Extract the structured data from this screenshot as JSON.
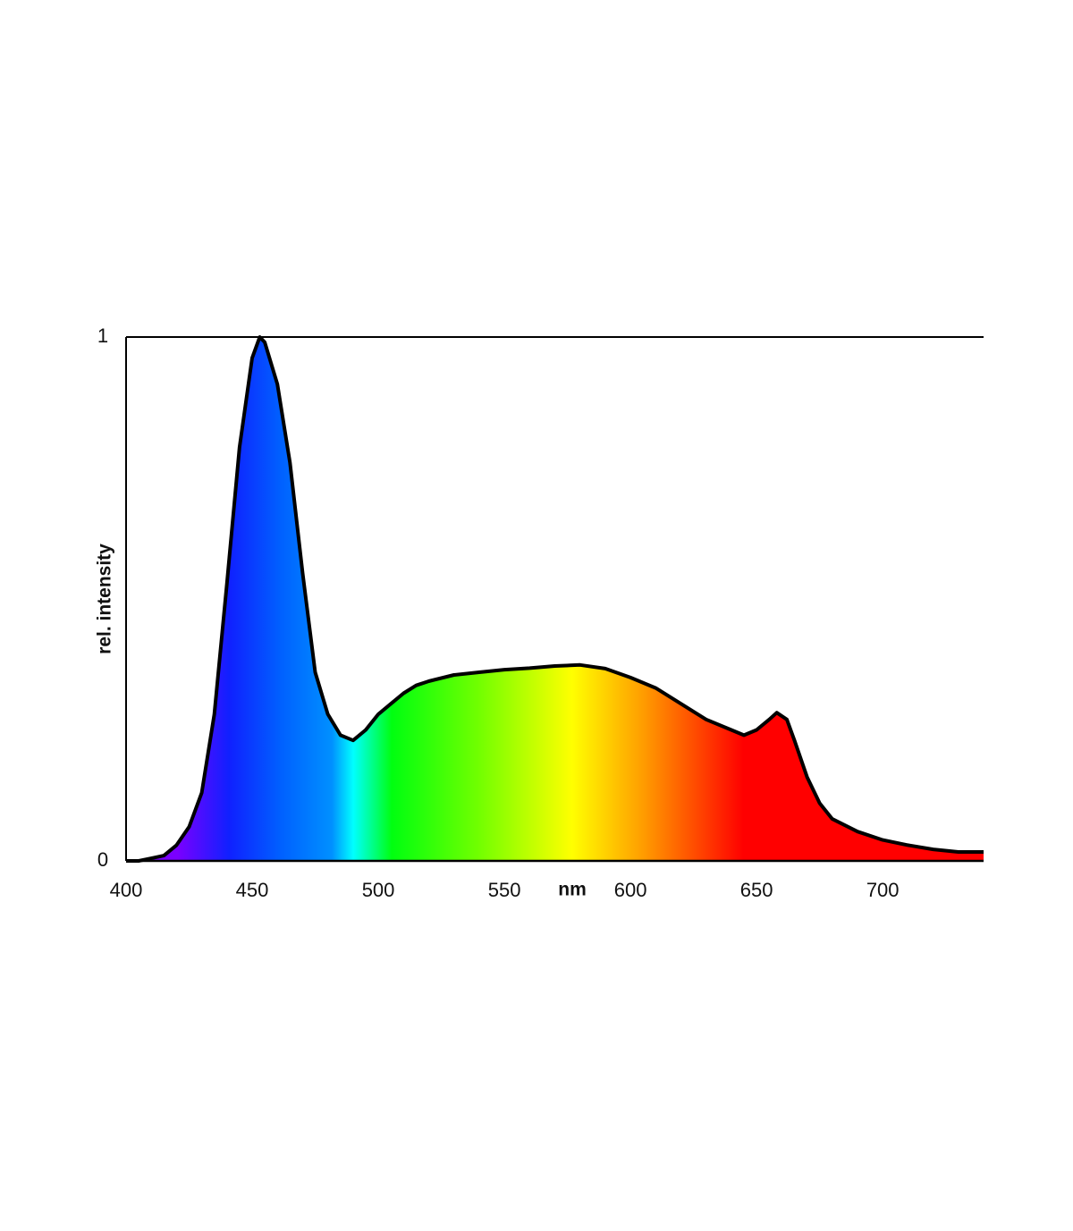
{
  "chart_data": {
    "type": "area",
    "x_label": "nm",
    "y_label": "rel. intensity",
    "x": [
      400,
      405,
      410,
      415,
      420,
      425,
      430,
      435,
      440,
      445,
      450,
      453,
      455,
      460,
      465,
      470,
      475,
      480,
      485,
      490,
      495,
      500,
      505,
      510,
      515,
      520,
      530,
      540,
      550,
      560,
      570,
      580,
      590,
      600,
      610,
      620,
      630,
      640,
      645,
      650,
      655,
      658,
      662,
      665,
      670,
      675,
      680,
      690,
      700,
      710,
      720,
      730,
      740
    ],
    "values": [
      0,
      0,
      0.005,
      0.01,
      0.03,
      0.065,
      0.13,
      0.28,
      0.53,
      0.79,
      0.96,
      1.0,
      0.99,
      0.91,
      0.76,
      0.55,
      0.36,
      0.28,
      0.24,
      0.23,
      0.25,
      0.28,
      0.3,
      0.32,
      0.335,
      0.343,
      0.355,
      0.36,
      0.365,
      0.368,
      0.372,
      0.374,
      0.367,
      0.35,
      0.33,
      0.3,
      0.27,
      0.25,
      0.24,
      0.25,
      0.27,
      0.283,
      0.27,
      0.23,
      0.16,
      0.11,
      0.08,
      0.056,
      0.04,
      0.03,
      0.022,
      0.017,
      0.017
    ],
    "color": "#000000",
    "xlim": [
      400,
      740
    ],
    "xticks": [
      400,
      450,
      500,
      550,
      600,
      650,
      700
    ],
    "ylim": [
      0,
      1
    ],
    "yticks": [
      0,
      1
    ]
  }
}
